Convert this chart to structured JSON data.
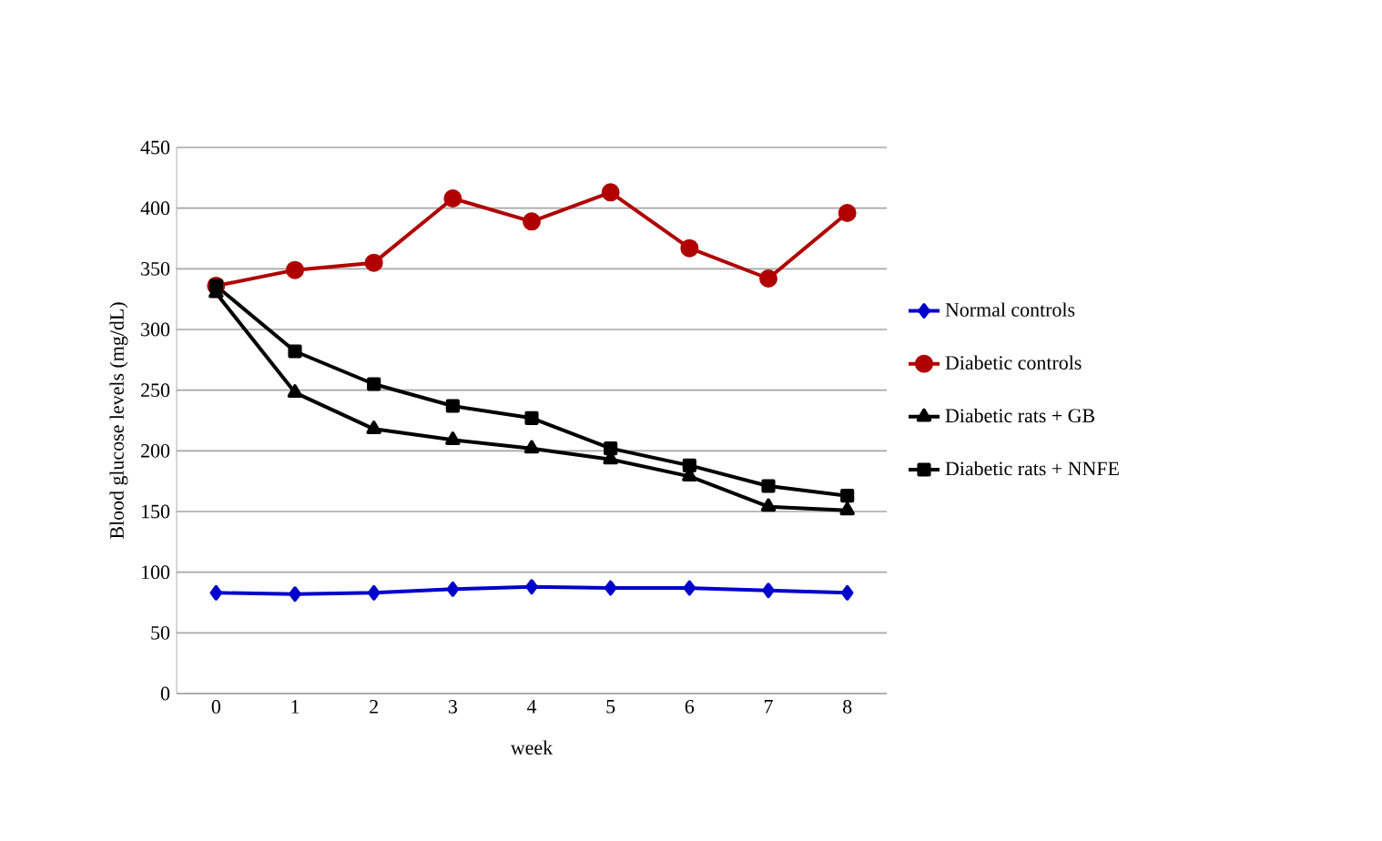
{
  "chart_data": {
    "type": "line",
    "xlabel": "week",
    "ylabel": "Blood glucose levels (mg/dL)",
    "x": [
      0,
      1,
      2,
      3,
      4,
      5,
      6,
      7,
      8
    ],
    "xlim": [
      -0.5,
      8.5
    ],
    "xticks": [
      0,
      1,
      2,
      3,
      4,
      5,
      6,
      7,
      8
    ],
    "ylim": [
      0,
      450
    ],
    "yticks": [
      0,
      50,
      100,
      150,
      200,
      250,
      300,
      350,
      400,
      450
    ],
    "grid": "y",
    "legend": "right",
    "line_style": "solid",
    "series": [
      {
        "name": "Normal controls",
        "color": "#0000cc",
        "marker": "diamond",
        "values": [
          83,
          82,
          83,
          86,
          88,
          87,
          87,
          85,
          83
        ]
      },
      {
        "name": "Diabetic controls",
        "color": "#b00000",
        "marker": "circle",
        "values": [
          336,
          349,
          355,
          408,
          389,
          413,
          367,
          342,
          396
        ]
      },
      {
        "name": "Diabetic rats + GB",
        "color": "#000000",
        "marker": "triangle",
        "values": [
          330,
          248,
          218,
          209,
          202,
          193,
          179,
          154,
          151
        ]
      },
      {
        "name": "Diabetic rats + NNFE",
        "color": "#000000",
        "marker": "square",
        "values": [
          336,
          282,
          255,
          237,
          227,
          202,
          188,
          171,
          163
        ]
      }
    ]
  }
}
